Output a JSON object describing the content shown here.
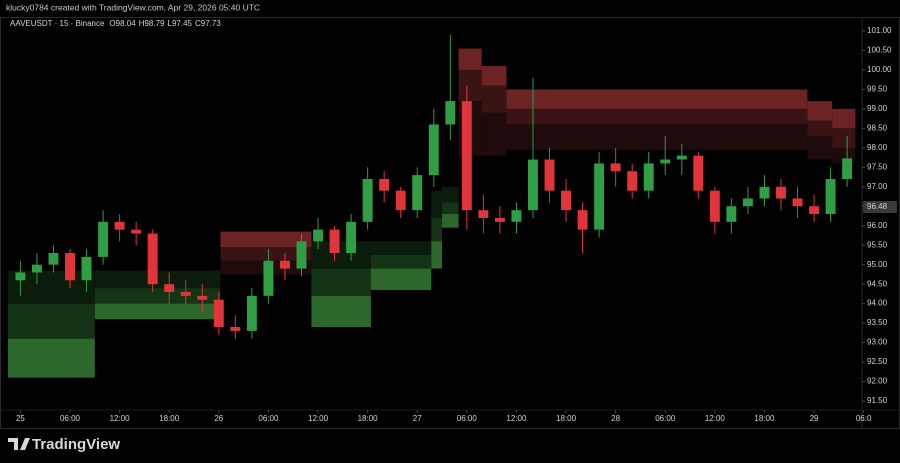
{
  "header": {
    "credit": "klucky0784 created with TradingView.com, Apr 29, 2026 05:40 UTC"
  },
  "footer": {
    "brand": "TradingView"
  },
  "chart_data": {
    "type": "candlestick",
    "symbol": "AAVEUSDT · 15 · Binance",
    "ohlc": [
      {
        "label": "O",
        "value": 98.04
      },
      {
        "label": "H",
        "value": 98.79
      },
      {
        "label": "L",
        "value": 97.45
      },
      {
        "label": "C",
        "value": 97.73
      }
    ],
    "last_price": 96.48,
    "up_color": "#2f9e44",
    "down_color": "#e0363b",
    "x": [
      0,
      2,
      4,
      6,
      8,
      10,
      12,
      14,
      16,
      18,
      20,
      22,
      24,
      26,
      28,
      30,
      32,
      34,
      36,
      38,
      40,
      42,
      44,
      46,
      48,
      50,
      52,
      54,
      56,
      58,
      60,
      62,
      64,
      66,
      68,
      70,
      72,
      74,
      76,
      78,
      80,
      82,
      84,
      86,
      88,
      90,
      92,
      94,
      96,
      98,
      100
    ],
    "open": [
      94.6,
      94.8,
      95.0,
      95.3,
      94.6,
      95.2,
      96.1,
      95.9,
      95.8,
      94.5,
      94.3,
      94.2,
      94.1,
      93.4,
      93.3,
      94.2,
      95.1,
      94.9,
      95.6,
      95.9,
      95.3,
      96.1,
      97.2,
      96.9,
      96.4,
      97.3,
      98.6,
      99.2,
      96.4,
      96.2,
      96.1,
      96.4,
      97.7,
      96.9,
      96.4,
      95.9,
      97.6,
      97.4,
      96.9,
      97.6,
      97.7,
      97.8,
      96.9,
      96.1,
      96.5,
      96.7,
      97.0,
      96.7,
      96.5,
      96.3,
      97.2
    ],
    "high": [
      95.1,
      95.3,
      95.5,
      95.4,
      95.4,
      96.4,
      96.3,
      96.1,
      95.9,
      94.8,
      94.6,
      94.5,
      94.3,
      93.7,
      94.4,
      95.4,
      95.3,
      95.8,
      96.2,
      96.0,
      96.3,
      97.5,
      97.4,
      97.0,
      97.5,
      99.0,
      100.9,
      99.6,
      96.8,
      96.5,
      96.6,
      99.8,
      98.0,
      97.2,
      96.6,
      97.9,
      98.0,
      97.6,
      97.9,
      98.3,
      98.1,
      97.9,
      97.0,
      96.7,
      97.0,
      97.3,
      97.2,
      97.0,
      96.8,
      97.5,
      98.3
    ],
    "low": [
      94.2,
      94.5,
      94.8,
      94.4,
      94.3,
      95.0,
      95.6,
      95.5,
      94.3,
      94.0,
      94.0,
      93.8,
      93.2,
      93.1,
      93.1,
      94.0,
      94.6,
      94.7,
      95.4,
      95.1,
      95.1,
      95.9,
      96.6,
      96.2,
      96.2,
      97.0,
      98.2,
      95.9,
      95.8,
      95.8,
      95.8,
      96.2,
      96.6,
      96.1,
      95.3,
      95.7,
      97.0,
      96.7,
      96.7,
      97.3,
      97.3,
      96.7,
      95.8,
      95.8,
      96.3,
      96.5,
      96.4,
      96.2,
      96.1,
      96.1,
      97.0
    ],
    "close": [
      94.8,
      95.0,
      95.3,
      94.6,
      95.2,
      96.1,
      95.9,
      95.8,
      94.5,
      94.3,
      94.2,
      94.1,
      93.4,
      93.3,
      94.2,
      95.1,
      94.9,
      95.6,
      95.9,
      95.3,
      96.1,
      97.2,
      96.9,
      96.4,
      97.3,
      98.6,
      99.2,
      96.4,
      96.2,
      96.1,
      96.4,
      97.7,
      96.9,
      96.4,
      95.9,
      97.6,
      97.4,
      96.9,
      97.6,
      97.7,
      97.8,
      96.9,
      96.1,
      96.5,
      96.7,
      97.0,
      96.7,
      96.5,
      96.3,
      97.2,
      97.73
    ],
    "zones": [
      {
        "colors": [
          "#0c1c0c",
          "#153315",
          "#2c682c"
        ],
        "segments": [
          [
            -1.5,
            9,
            94.85,
            94.0,
            93.1,
            92.1
          ],
          [
            9,
            24.2,
            94.85,
            94.4,
            94.0,
            93.6
          ],
          [
            35.2,
            42.4,
            95.6,
            94.9,
            94.2,
            93.4
          ],
          [
            42.4,
            49.7,
            95.6,
            95.25,
            94.9,
            94.35
          ],
          [
            49.7,
            51,
            96.9,
            96.2,
            95.6,
            94.9
          ],
          [
            51,
            53,
            97.0,
            96.6,
            96.3,
            95.95
          ]
        ]
      },
      {
        "colors": [
          "#6b2323",
          "#3a1414",
          "#1f0b0b"
        ],
        "segments": [
          [
            24.2,
            35.2,
            95.85,
            95.45,
            95.1,
            94.75
          ],
          [
            53,
            55.8,
            100.55,
            100.0,
            99.2,
            97.8
          ],
          [
            55.8,
            58.8,
            100.1,
            99.6,
            98.9,
            97.8
          ],
          [
            58.8,
            95.2,
            99.5,
            99.0,
            98.6,
            97.95
          ],
          [
            95.2,
            98.2,
            99.2,
            98.7,
            98.3,
            97.7
          ],
          [
            98.2,
            101,
            99.0,
            98.5,
            98.0,
            97.6
          ]
        ]
      }
    ],
    "xlim": [
      -1.5,
      101.8
    ],
    "ylim": [
      91.5,
      101.0
    ],
    "xticks": [
      {
        "value": 0,
        "label": "25"
      },
      {
        "value": 6,
        "label": "06:00"
      },
      {
        "value": 12,
        "label": "12:00"
      },
      {
        "value": 18,
        "label": "18:00"
      },
      {
        "value": 24,
        "label": "26"
      },
      {
        "value": 30,
        "label": "06:00"
      },
      {
        "value": 36,
        "label": "12:00"
      },
      {
        "value": 42,
        "label": "18:00"
      },
      {
        "value": 48,
        "label": "27"
      },
      {
        "value": 54,
        "label": "06:00"
      },
      {
        "value": 60,
        "label": "12:00"
      },
      {
        "value": 66,
        "label": "18:00"
      },
      {
        "value": 72,
        "label": "28"
      },
      {
        "value": 78,
        "label": "06:00"
      },
      {
        "value": 84,
        "label": "12:00"
      },
      {
        "value": 90,
        "label": "18:00"
      },
      {
        "value": 96,
        "label": "29"
      },
      {
        "value": 102,
        "label": "06:0"
      }
    ],
    "yticks": [
      {
        "value": 91.5,
        "label": "91.50"
      },
      {
        "value": 92,
        "label": "92.00"
      },
      {
        "value": 92.5,
        "label": "92.50"
      },
      {
        "value": 93,
        "label": "93.00"
      },
      {
        "value": 93.5,
        "label": "93.50"
      },
      {
        "value": 94,
        "label": "94.00"
      },
      {
        "value": 94.5,
        "label": "94.50"
      },
      {
        "value": 95,
        "label": "95.00"
      },
      {
        "value": 95.5,
        "label": "95.50"
      },
      {
        "value": 96,
        "label": "96.00"
      },
      {
        "value": 96.5,
        "label": "96.50"
      },
      {
        "value": 97,
        "label": "97.00"
      },
      {
        "value": 97.5,
        "label": "97.50"
      },
      {
        "value": 98,
        "label": "98.00"
      },
      {
        "value": 98.5,
        "label": "98.50"
      },
      {
        "value": 99,
        "label": "99.00"
      },
      {
        "value": 99.5,
        "label": "99.50"
      },
      {
        "value": 100,
        "label": "100.00"
      },
      {
        "value": 100.5,
        "label": "100.50"
      },
      {
        "value": 101,
        "label": "101.00"
      }
    ]
  }
}
